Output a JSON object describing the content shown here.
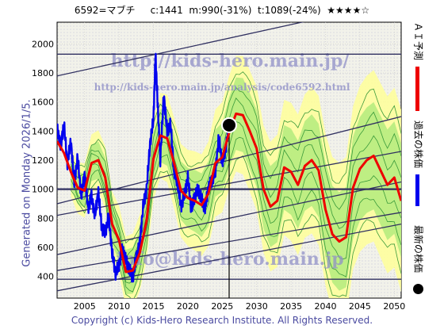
{
  "header": {
    "text": "6592=マブチ     c:1441  m:990(-31%)  t:1089(-24%)  ★★★★☆"
  },
  "sidebar": {
    "text": "Generated on Monday 2026/1/5."
  },
  "footer": {
    "text": "Copyright (c) Kids-Hero Research Institute. All Rights Reserved."
  },
  "watermarks": {
    "url_main": "http://kids-hero.main.jp/",
    "url_sub": "http://kids-hero.main.jp/analysis/code6592.html",
    "email": "info@kids-hero.main.jp"
  },
  "legend": {
    "ai_forecast": "ＡＩ予測",
    "past_price": "過去の株価",
    "latest_price": "最新の株価"
  },
  "colors": {
    "forecast": "#ee0000",
    "price": "#0000ee",
    "band_light": "#ffff99",
    "band_green": "#a8e878",
    "trendline": "#303060",
    "plot_bg": "#f4f4ee"
  },
  "chart_data": {
    "type": "line",
    "xlim": [
      2001,
      2051
    ],
    "ylim": [
      250,
      2150
    ],
    "xticks": [
      2005,
      2010,
      2015,
      2020,
      2025,
      2030,
      2035,
      2040,
      2045,
      2050
    ],
    "yticks": [
      400,
      600,
      800,
      1000,
      1200,
      1400,
      1600,
      1800,
      2000
    ],
    "grid": true,
    "latest_point": {
      "x": 2026.0,
      "y": 1441
    },
    "horizontal_levels": [
      380,
      1000,
      1930
    ],
    "trendlines": [
      {
        "x": [
          2001,
          2051
        ],
        "y": [
          1780,
          2300
        ]
      },
      {
        "x": [
          2001,
          2051
        ],
        "y": [
          900,
          1500
        ]
      },
      {
        "x": [
          2001,
          2051
        ],
        "y": [
          550,
          1050
        ]
      },
      {
        "x": [
          2001,
          2051
        ],
        "y": [
          440,
          840
        ]
      },
      {
        "x": [
          2001,
          2051
        ],
        "y": [
          300,
          760
        ]
      },
      {
        "x": [
          2001,
          2051
        ],
        "y": [
          820,
          1260
        ]
      }
    ],
    "series": [
      {
        "name": "過去の株価",
        "x": [
          2001,
          2001.5,
          2002,
          2002.5,
          2003,
          2003.5,
          2004,
          2004.5,
          2005,
          2005.5,
          2006,
          2006.5,
          2007,
          2007.5,
          2008,
          2008.5,
          2009,
          2009.5,
          2010,
          2010.5,
          2011,
          2011.5,
          2012,
          2012.5,
          2013,
          2013.5,
          2014,
          2014.5,
          2015,
          2015.3,
          2015.6,
          2016,
          2016.5,
          2017,
          2017.5,
          2018,
          2018.5,
          2019,
          2019.5,
          2020,
          2020.5,
          2021,
          2021.5,
          2022,
          2022.5,
          2023,
          2023.5,
          2024,
          2024.5,
          2025,
          2025.5,
          2026
        ],
        "y": [
          1430,
          1290,
          1450,
          1180,
          1330,
          1050,
          1220,
          950,
          1100,
          870,
          950,
          820,
          980,
          730,
          700,
          820,
          560,
          420,
          480,
          590,
          510,
          450,
          390,
          530,
          620,
          880,
          1000,
          1310,
          1480,
          1930,
          1600,
          1200,
          1650,
          1400,
          1450,
          1120,
          1050,
          880,
          960,
          1080,
          860,
          950,
          1000,
          930,
          870,
          1010,
          1060,
          1120,
          1360,
          1180,
          1280,
          1441
        ]
      },
      {
        "name": "ＡＩ予測",
        "x": [
          2001,
          2002,
          2003,
          2004,
          2005,
          2006,
          2007,
          2008,
          2009,
          2010,
          2011,
          2012,
          2013,
          2014,
          2015,
          2016,
          2017,
          2018,
          2019,
          2020,
          2021,
          2022,
          2023,
          2024,
          2025,
          2026,
          2027,
          2028,
          2029,
          2030,
          2031,
          2032,
          2033,
          2034,
          2035,
          2036,
          2037,
          2038,
          2039,
          2040,
          2041,
          2042,
          2043,
          2044,
          2045,
          2046,
          2047,
          2048,
          2049,
          2050,
          2051
        ],
        "y": [
          1330,
          1250,
          1120,
          1010,
          990,
          1180,
          1200,
          1080,
          760,
          650,
          430,
          440,
          560,
          780,
          1210,
          1370,
          1350,
          1180,
          990,
          940,
          920,
          890,
          970,
          1180,
          1220,
          1390,
          1520,
          1510,
          1400,
          1280,
          1000,
          880,
          920,
          1150,
          1120,
          1030,
          1160,
          1200,
          1130,
          860,
          690,
          640,
          670,
          1010,
          1140,
          1200,
          1230,
          1130,
          1030,
          1080,
          920
        ]
      }
    ]
  }
}
